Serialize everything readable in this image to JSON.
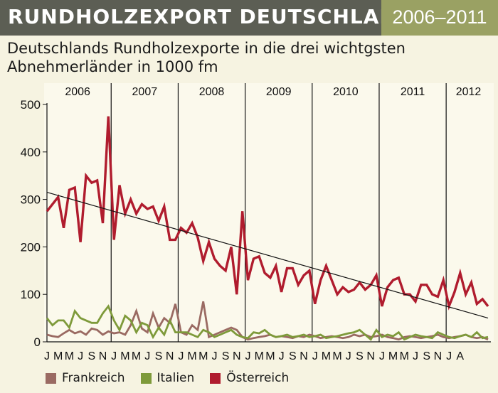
{
  "header": {
    "title": "RUNDHOLZEXPORT DEUTSCHLAND",
    "years": "2006–2011",
    "title_bg": "#5c5e54",
    "years_bg": "#9aa163"
  },
  "subtitle": "Deutschlands Rundholzexporte in die drei wichtgsten Abnehmerländer in 1000 fm",
  "chart_data": {
    "type": "line",
    "title": "Deutschlands Rundholzexporte in die drei wichtgsten Abnehmerländer in 1000 fm",
    "ylim": [
      0,
      500
    ],
    "y_ticks": [
      0,
      100,
      200,
      300,
      400,
      500
    ],
    "year_labels": [
      "2006",
      "2007",
      "2008",
      "2009",
      "2010",
      "2011",
      "2012"
    ],
    "month_labels": [
      "J",
      "M",
      "M",
      "J",
      "S",
      "N",
      "J",
      "M",
      "M",
      "J",
      "S",
      "N",
      "J",
      "M",
      "M",
      "J",
      "S",
      "N",
      "J",
      "M",
      "M",
      "J",
      "S",
      "N",
      "J",
      "M",
      "M",
      "J",
      "S",
      "N",
      "J",
      "M",
      "M",
      "J",
      "S",
      "N",
      "J",
      "A"
    ],
    "grid": false,
    "legend_position": "bottom",
    "series": [
      {
        "name": "Frankreich",
        "color": "#9a6a62",
        "values": [
          15,
          12,
          10,
          18,
          25,
          18,
          22,
          15,
          28,
          25,
          15,
          22,
          18,
          20,
          15,
          35,
          65,
          28,
          20,
          60,
          30,
          50,
          40,
          80,
          20,
          15,
          35,
          25,
          85,
          10,
          15,
          20,
          25,
          30,
          25,
          10,
          5,
          8,
          10,
          12,
          15,
          10,
          12,
          10,
          8,
          12,
          10,
          15,
          12,
          8,
          10,
          12,
          10,
          8,
          10,
          15,
          12,
          15,
          10,
          12,
          15,
          10,
          8,
          5,
          10,
          12,
          10,
          8,
          10,
          12,
          15,
          10,
          8,
          10,
          12,
          15,
          10,
          8,
          10,
          5
        ]
      },
      {
        "name": "Italien",
        "color": "#7e9a3a",
        "values": [
          50,
          35,
          45,
          45,
          30,
          65,
          50,
          45,
          40,
          40,
          60,
          75,
          45,
          25,
          55,
          45,
          20,
          40,
          35,
          10,
          30,
          15,
          45,
          20,
          20,
          20,
          15,
          10,
          25,
          20,
          10,
          15,
          20,
          25,
          15,
          10,
          8,
          20,
          18,
          25,
          15,
          10,
          12,
          15,
          10,
          12,
          15,
          10,
          12,
          15,
          8,
          10,
          12,
          15,
          18,
          20,
          25,
          15,
          5,
          25,
          10,
          15,
          12,
          20,
          5,
          10,
          15,
          12,
          10,
          8,
          20,
          15,
          10,
          8,
          12,
          15,
          10,
          20,
          8,
          10
        ]
      },
      {
        "name": "Österreich",
        "color": "#b01c2e",
        "values": [
          275,
          290,
          305,
          240,
          320,
          325,
          210,
          350,
          335,
          340,
          250,
          475,
          215,
          330,
          270,
          300,
          270,
          290,
          280,
          285,
          255,
          285,
          215,
          215,
          240,
          230,
          250,
          220,
          170,
          210,
          175,
          160,
          150,
          200,
          100,
          275,
          130,
          175,
          180,
          145,
          135,
          160,
          105,
          155,
          155,
          120,
          140,
          150,
          80,
          130,
          160,
          130,
          100,
          115,
          105,
          110,
          125,
          110,
          120,
          140,
          75,
          115,
          130,
          135,
          100,
          100,
          85,
          120,
          120,
          100,
          95,
          130,
          75,
          105,
          145,
          100,
          125,
          80,
          90,
          75
        ]
      }
    ],
    "trendline": {
      "start": 315,
      "end": 50,
      "color": "#111111"
    }
  },
  "legend": {
    "items": [
      {
        "label": "Frankreich",
        "color": "#9a6a62"
      },
      {
        "label": "Italien",
        "color": "#7e9a3a"
      },
      {
        "label": "Österreich",
        "color": "#b01c2e"
      }
    ]
  }
}
